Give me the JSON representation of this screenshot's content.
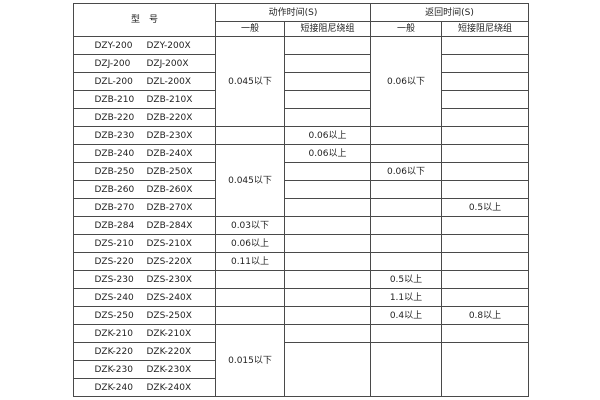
{
  "header": {
    "model": "型　号",
    "action_time": "动作时间(S)",
    "return_time": "返回时间(S)",
    "sub": [
      "一般",
      "短接阻尼绕组",
      "一般",
      "短接阻尼绕组"
    ]
  },
  "rows": [
    {
      "model": [
        "DZY-200",
        "DZY-200X"
      ],
      "cells": [
        {
          "text": "0.045以下",
          "rowspan": 5
        },
        {
          "text": ""
        },
        {
          "text": "0.06以下",
          "rowspan": 5
        },
        {
          "text": ""
        }
      ]
    },
    {
      "model": [
        "DZJ-200",
        "DZJ-200X"
      ],
      "cells": [
        null,
        {
          "text": ""
        },
        null,
        {
          "text": ""
        }
      ]
    },
    {
      "model": [
        "DZL-200",
        "DZL-200X"
      ],
      "cells": [
        null,
        {
          "text": ""
        },
        null,
        {
          "text": ""
        }
      ]
    },
    {
      "model": [
        "DZB-210",
        "DZB-210X"
      ],
      "cells": [
        null,
        {
          "text": ""
        },
        null,
        {
          "text": ""
        }
      ]
    },
    {
      "model": [
        "DZB-220",
        "DZB-220X"
      ],
      "cells": [
        null,
        {
          "text": ""
        },
        null,
        {
          "text": ""
        }
      ]
    },
    {
      "model": [
        "DZB-230",
        "DZB-230X"
      ],
      "cells": [
        {
          "text": ""
        },
        {
          "text": "0.06以上"
        },
        {
          "text": ""
        },
        {
          "text": ""
        }
      ]
    },
    {
      "model": [
        "DZB-240",
        "DZB-240X"
      ],
      "cells": [
        {
          "text": "0.045以下",
          "rowspan": 4
        },
        {
          "text": "0.06以上"
        },
        {
          "text": ""
        },
        {
          "text": ""
        }
      ]
    },
    {
      "model": [
        "DZB-250",
        "DZB-250X"
      ],
      "cells": [
        null,
        {
          "text": ""
        },
        {
          "text": "0.06以下"
        },
        {
          "text": ""
        }
      ]
    },
    {
      "model": [
        "DZB-260",
        "DZB-260X"
      ],
      "cells": [
        null,
        {
          "text": ""
        },
        {
          "text": ""
        },
        {
          "text": ""
        }
      ]
    },
    {
      "model": [
        "DZB-270",
        "DZB-270X"
      ],
      "cells": [
        null,
        {
          "text": ""
        },
        {
          "text": ""
        },
        {
          "text": "0.5以上"
        }
      ]
    },
    {
      "model": [
        "DZB-284",
        "DZB-284X"
      ],
      "cells": [
        {
          "text": "0.03以下"
        },
        {
          "text": ""
        },
        {
          "text": ""
        },
        {
          "text": ""
        }
      ]
    },
    {
      "model": [
        "DZS-210",
        "DZS-210X"
      ],
      "cells": [
        {
          "text": "0.06以上"
        },
        {
          "text": ""
        },
        {
          "text": ""
        },
        {
          "text": ""
        }
      ]
    },
    {
      "model": [
        "DZS-220",
        "DZS-220X"
      ],
      "cells": [
        {
          "text": "0.11以上"
        },
        {
          "text": ""
        },
        {
          "text": ""
        },
        {
          "text": ""
        }
      ]
    },
    {
      "model": [
        "DZS-230",
        "DZS-230X"
      ],
      "cells": [
        {
          "text": ""
        },
        {
          "text": ""
        },
        {
          "text": "0.5以上"
        },
        {
          "text": ""
        }
      ]
    },
    {
      "model": [
        "DZS-240",
        "DZS-240X"
      ],
      "cells": [
        {
          "text": ""
        },
        {
          "text": ""
        },
        {
          "text": "1.1以上"
        },
        {
          "text": ""
        }
      ]
    },
    {
      "model": [
        "DZS-250",
        "DZS-250X"
      ],
      "cells": [
        {
          "text": ""
        },
        {
          "text": ""
        },
        {
          "text": "0.4以上"
        },
        {
          "text": "0.8以上"
        }
      ]
    },
    {
      "model": [
        "DZK-210",
        "DZK-210X"
      ],
      "cells": [
        {
          "text": "0.015以下",
          "rowspan": 4
        },
        {
          "text": ""
        },
        {
          "text": ""
        },
        {
          "text": ""
        }
      ]
    },
    {
      "model": [
        "DZK-220",
        "DZK-220X"
      ],
      "cells": [
        null,
        {
          "text": "",
          "rowspan": 3
        },
        {
          "text": "",
          "rowspan": 3
        },
        {
          "text": "",
          "rowspan": 3
        }
      ]
    },
    {
      "model": [
        "DZK-230",
        "DZK-230X"
      ],
      "cells": [
        null,
        null,
        null,
        null
      ]
    },
    {
      "model": [
        "DZK-240",
        "DZK-240X"
      ],
      "cells": [
        null,
        null,
        null,
        null
      ]
    }
  ]
}
